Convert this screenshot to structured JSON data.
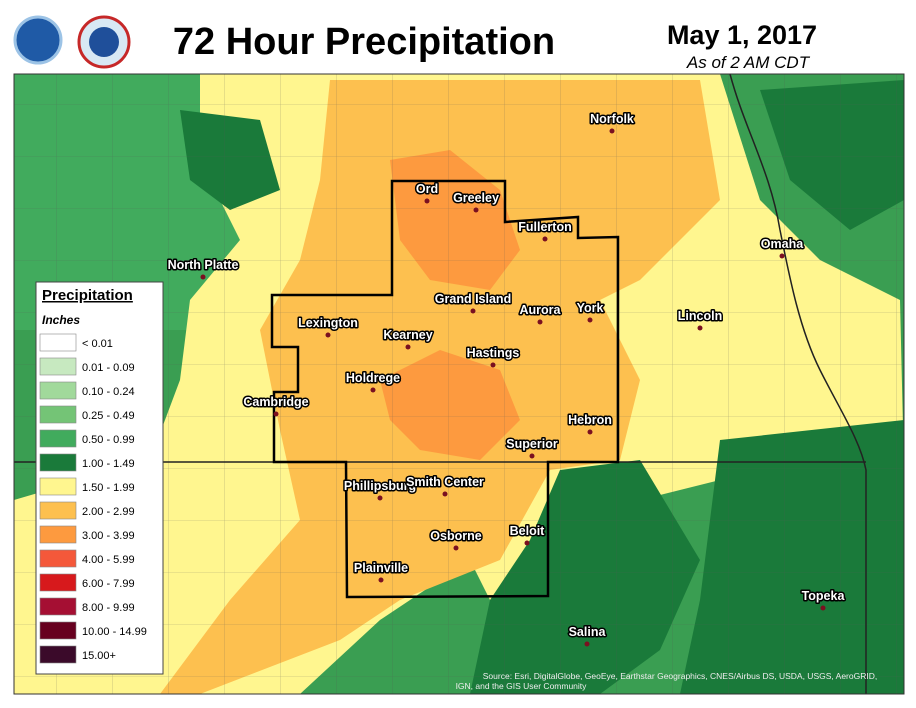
{
  "header": {
    "title": "72 Hour Precipitation",
    "date": "May 1, 2017",
    "as_of": "As of 2 AM CDT"
  },
  "legend": {
    "title": "Precipitation",
    "units": "Inches",
    "items": [
      {
        "label": "< 0.01",
        "color": "#ffffff"
      },
      {
        "label": "0.01 - 0.09",
        "color": "#c7e9c0"
      },
      {
        "label": "0.10 - 0.24",
        "color": "#a1d99b"
      },
      {
        "label": "0.25 - 0.49",
        "color": "#74c476"
      },
      {
        "label": "0.50 - 0.99",
        "color": "#41ab5d"
      },
      {
        "label": "1.00 - 1.49",
        "color": "#1a7a3a"
      },
      {
        "label": "1.50 - 1.99",
        "color": "#fff68f"
      },
      {
        "label": "2.00 - 2.99",
        "color": "#fdc04f"
      },
      {
        "label": "3.00 - 3.99",
        "color": "#fd9a3f"
      },
      {
        "label": "4.00 - 5.99",
        "color": "#f4583a"
      },
      {
        "label": "6.00 - 7.99",
        "color": "#d7191c"
      },
      {
        "label": "8.00 - 9.99",
        "color": "#a50f33"
      },
      {
        "label": "10.00 - 14.99",
        "color": "#67001f"
      },
      {
        "label": "15.00+",
        "color": "#3b0a2a"
      }
    ]
  },
  "cities": [
    "Norfolk",
    "Ord",
    "Greeley",
    "Fullerton",
    "Omaha",
    "North Platte",
    "Grand Island",
    "Aurora",
    "York",
    "Lincoln",
    "Lexington",
    "Kearney",
    "Hastings",
    "Holdrege",
    "Cambridge",
    "Hebron",
    "Superior",
    "Phillipsburg",
    "Smith Center",
    "Beloit",
    "Osborne",
    "Plainville",
    "Topeka",
    "Salina"
  ],
  "credits": [
    "Source: Esri, DigitalGlobe, GeoEye, Earthstar Geographics, CNES/Airbus DS, USDA, USGS, AeroGRID,",
    "IGN, and the GIS User Community"
  ]
}
